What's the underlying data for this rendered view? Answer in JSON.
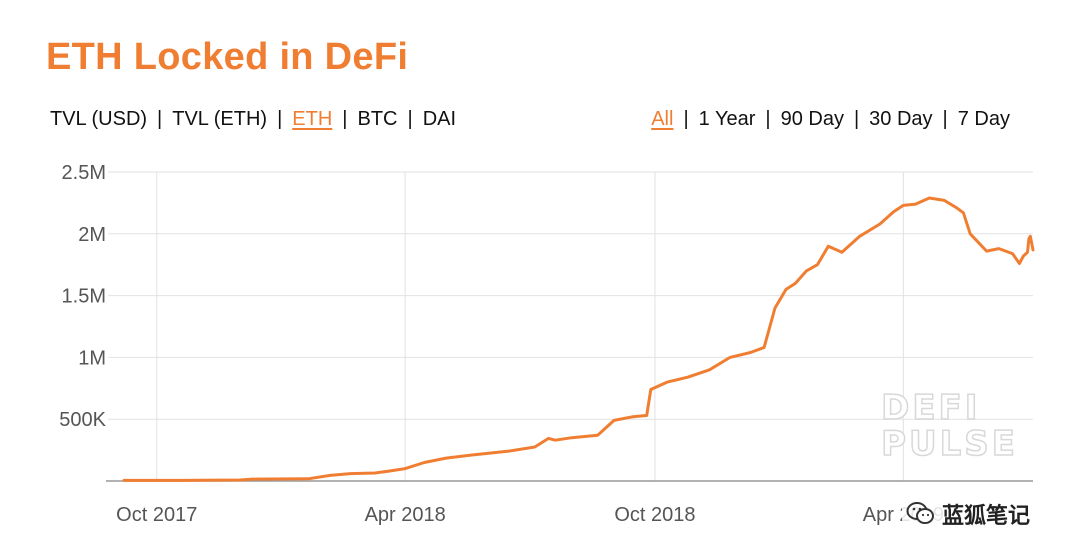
{
  "header": {
    "title": "ETH Locked in DeFi"
  },
  "nav_left": [
    {
      "label": "TVL (USD)",
      "active": false
    },
    {
      "label": "TVL (ETH)",
      "active": false
    },
    {
      "label": "ETH",
      "active": true
    },
    {
      "label": "BTC",
      "active": false
    },
    {
      "label": "DAI",
      "active": false
    }
  ],
  "nav_right": [
    {
      "label": "All",
      "active": true
    },
    {
      "label": "1 Year",
      "active": false
    },
    {
      "label": "90 Day",
      "active": false
    },
    {
      "label": "30 Day",
      "active": false
    },
    {
      "label": "7 Day",
      "active": false
    }
  ],
  "watermark": {
    "line1": "DEFI",
    "line2": "PULSE"
  },
  "wechat_overlay": {
    "icon": "wechat-icon",
    "text": "蓝狐笔记"
  },
  "colors": {
    "accent": "#F07E32",
    "grid": "#e2e2e2",
    "axis": "#999999"
  },
  "chart_data": {
    "type": "line",
    "title": "ETH Locked in DeFi",
    "xlabel": "",
    "ylabel": "",
    "x_range": [
      "2017-09-07",
      "2019-07-05"
    ],
    "ylim": [
      0,
      2500000
    ],
    "y_ticks": [
      {
        "value": 500000,
        "label": "500K"
      },
      {
        "value": 1000000,
        "label": "1M"
      },
      {
        "value": 1500000,
        "label": "1.5M"
      },
      {
        "value": 2000000,
        "label": "2M"
      },
      {
        "value": 2500000,
        "label": "2.5M"
      }
    ],
    "x_ticks": [
      {
        "date": "2017-10-01",
        "label": "Oct 2017"
      },
      {
        "date": "2018-04-01",
        "label": "Apr 2018"
      },
      {
        "date": "2018-10-01",
        "label": "Oct 2018"
      },
      {
        "date": "2019-04-01",
        "label": "Apr 2019"
      }
    ],
    "grid": true,
    "series": [
      {
        "color": "#F07E32",
        "points": [
          [
            "2017-09-07",
            5000
          ],
          [
            "2017-10-20",
            5000
          ],
          [
            "2017-12-01",
            8000
          ],
          [
            "2017-12-10",
            15000
          ],
          [
            "2018-01-20",
            18000
          ],
          [
            "2018-02-05",
            45000
          ],
          [
            "2018-02-20",
            60000
          ],
          [
            "2018-03-10",
            65000
          ],
          [
            "2018-03-20",
            80000
          ],
          [
            "2018-04-01",
            100000
          ],
          [
            "2018-04-15",
            150000
          ],
          [
            "2018-05-01",
            185000
          ],
          [
            "2018-05-20",
            210000
          ],
          [
            "2018-06-15",
            240000
          ],
          [
            "2018-07-05",
            275000
          ],
          [
            "2018-07-15",
            345000
          ],
          [
            "2018-07-20",
            330000
          ],
          [
            "2018-08-01",
            350000
          ],
          [
            "2018-08-20",
            370000
          ],
          [
            "2018-08-25",
            420000
          ],
          [
            "2018-09-01",
            490000
          ],
          [
            "2018-09-15",
            520000
          ],
          [
            "2018-09-25",
            530000
          ],
          [
            "2018-09-28",
            740000
          ],
          [
            "2018-10-10",
            800000
          ],
          [
            "2018-10-25",
            840000
          ],
          [
            "2018-11-10",
            900000
          ],
          [
            "2018-11-25",
            1000000
          ],
          [
            "2018-12-10",
            1040000
          ],
          [
            "2018-12-20",
            1080000
          ],
          [
            "2018-12-28",
            1400000
          ],
          [
            "2019-01-05",
            1550000
          ],
          [
            "2019-01-12",
            1600000
          ],
          [
            "2019-01-20",
            1700000
          ],
          [
            "2019-01-28",
            1750000
          ],
          [
            "2019-02-05",
            1900000
          ],
          [
            "2019-02-15",
            1850000
          ],
          [
            "2019-02-28",
            1980000
          ],
          [
            "2019-03-15",
            2080000
          ],
          [
            "2019-03-25",
            2180000
          ],
          [
            "2019-04-01",
            2230000
          ],
          [
            "2019-04-10",
            2240000
          ],
          [
            "2019-04-20",
            2290000
          ],
          [
            "2019-05-01",
            2270000
          ],
          [
            "2019-05-10",
            2210000
          ],
          [
            "2019-05-15",
            2170000
          ],
          [
            "2019-05-20",
            2000000
          ],
          [
            "2019-06-01",
            1860000
          ],
          [
            "2019-06-10",
            1880000
          ],
          [
            "2019-06-20",
            1840000
          ],
          [
            "2019-06-25",
            1760000
          ],
          [
            "2019-06-28",
            1820000
          ],
          [
            "2019-07-01",
            1850000
          ],
          [
            "2019-07-02",
            1960000
          ],
          [
            "2019-07-03",
            1980000
          ],
          [
            "2019-07-05",
            1870000
          ]
        ]
      }
    ]
  }
}
